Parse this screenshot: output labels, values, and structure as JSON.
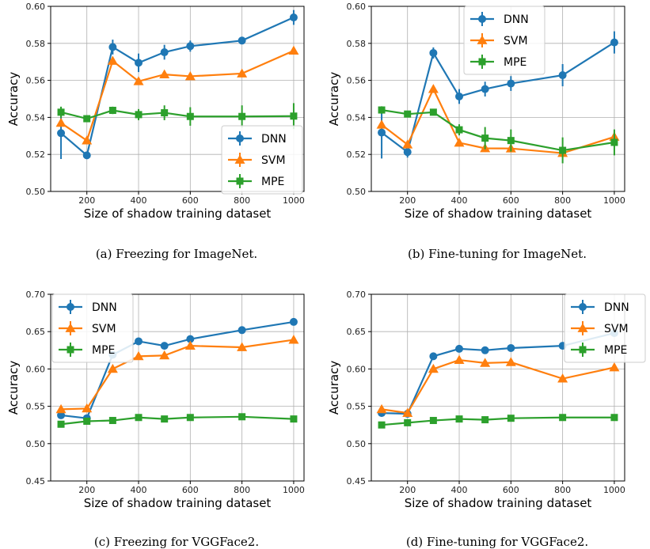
{
  "series_colors": {
    "DNN": "#1f77b4",
    "SVM": "#ff7f0e",
    "MPE": "#2ca02c"
  },
  "series_markers": {
    "DNN": "circle",
    "SVM": "triangle",
    "MPE": "square"
  },
  "chart_data": [
    {
      "type": "line",
      "caption": "(a) Freezing for ImageNet.",
      "xlabel": "Size of shadow training dataset",
      "ylabel": "Accuracy",
      "x": [
        100,
        200,
        300,
        400,
        500,
        600,
        800,
        1000
      ],
      "xticks": [
        200,
        400,
        600,
        800,
        1000
      ],
      "xlim": [
        60,
        1040
      ],
      "ylim": [
        0.5,
        0.6
      ],
      "yticks": [
        "0.50",
        "0.52",
        "0.54",
        "0.56",
        "0.58",
        "0.60"
      ],
      "grid": true,
      "legend_position": "lower-right",
      "series": [
        {
          "name": "DNN",
          "values": [
            0.5315,
            0.5195,
            0.578,
            0.5695,
            0.5752,
            0.5785,
            0.5815,
            0.594
          ],
          "err": [
            0.014,
            0.001,
            0.004,
            0.005,
            0.004,
            0.003,
            0.002,
            0.004
          ]
        },
        {
          "name": "SVM",
          "values": [
            0.537,
            0.5275,
            0.5705,
            0.5595,
            0.5632,
            0.5622,
            0.5637,
            0.576
          ],
          "err": [
            0.002,
            0.001,
            0.002,
            0.001,
            0.001,
            0.001,
            0.001,
            0.001
          ]
        },
        {
          "name": "MPE",
          "values": [
            0.5428,
            0.5393,
            0.5438,
            0.5415,
            0.5425,
            0.5405,
            0.5405,
            0.5407
          ],
          "err": [
            0.003,
            0.001,
            0.002,
            0.003,
            0.004,
            0.005,
            0.006,
            0.007
          ]
        }
      ]
    },
    {
      "type": "line",
      "caption": "(b) Fine-tuning for ImageNet.",
      "xlabel": "Size of shadow training dataset",
      "ylabel": "Accuracy",
      "x": [
        100,
        200,
        300,
        400,
        500,
        600,
        800,
        1000
      ],
      "xticks": [
        200,
        400,
        600,
        800,
        1000
      ],
      "xlim": [
        60,
        1040
      ],
      "ylim": [
        0.5,
        0.6
      ],
      "yticks": [
        "0.50",
        "0.52",
        "0.54",
        "0.56",
        "0.58",
        "0.60"
      ],
      "grid": true,
      "legend_position": "upper-center",
      "series": [
        {
          "name": "DNN",
          "values": [
            0.5318,
            0.5213,
            0.5748,
            0.5513,
            0.5553,
            0.5583,
            0.5628,
            0.5805
          ],
          "err": [
            0.014,
            0.003,
            0.003,
            0.004,
            0.004,
            0.004,
            0.006,
            0.006
          ]
        },
        {
          "name": "SVM",
          "values": [
            0.536,
            0.5253,
            0.5553,
            0.5263,
            0.5233,
            0.5232,
            0.5207,
            0.5295
          ],
          "err": [
            0.002,
            0.001,
            0.001,
            0.002,
            0.002,
            0.001,
            0.001,
            0.003
          ]
        },
        {
          "name": "MPE",
          "values": [
            0.544,
            0.5418,
            0.5428,
            0.5333,
            0.5288,
            0.5275,
            0.5222,
            0.5265
          ],
          "err": [
            0.002,
            0.001,
            0.001,
            0.003,
            0.006,
            0.006,
            0.007,
            0.007
          ]
        }
      ]
    },
    {
      "type": "line",
      "caption": "(c) Freezing for VGGFace2.",
      "xlabel": "Size of shadow training dataset",
      "ylabel": "Accuracy",
      "x": [
        100,
        200,
        300,
        400,
        500,
        600,
        800,
        1000
      ],
      "xticks": [
        200,
        400,
        600,
        800,
        1000
      ],
      "xlim": [
        60,
        1040
      ],
      "ylim": [
        0.45,
        0.7
      ],
      "yticks": [
        "0.45",
        "0.50",
        "0.55",
        "0.60",
        "0.65",
        "0.70"
      ],
      "grid": true,
      "legend_position": "upper-left",
      "series": [
        {
          "name": "DNN",
          "values": [
            0.538,
            0.534,
            0.619,
            0.637,
            0.631,
            0.64,
            0.652,
            0.663
          ],
          "err": [
            0.002,
            0.002,
            0.002,
            0.002,
            0.002,
            0.002,
            0.002,
            0.002
          ]
        },
        {
          "name": "SVM",
          "values": [
            0.546,
            0.547,
            0.6,
            0.617,
            0.618,
            0.631,
            0.629,
            0.639
          ],
          "err": [
            0.002,
            0.002,
            0.002,
            0.002,
            0.002,
            0.002,
            0.002,
            0.002
          ]
        },
        {
          "name": "MPE",
          "values": [
            0.526,
            0.53,
            0.531,
            0.535,
            0.533,
            0.535,
            0.536,
            0.533
          ],
          "err": [
            0.002,
            0.002,
            0.002,
            0.002,
            0.002,
            0.002,
            0.002,
            0.002
          ]
        }
      ]
    },
    {
      "type": "line",
      "caption": "(d) Fine-tuning for VGGFace2.",
      "xlabel": "Size of shadow training dataset",
      "ylabel": "Accuracy",
      "x": [
        100,
        200,
        300,
        400,
        500,
        600,
        800,
        1000
      ],
      "xticks": [
        200,
        400,
        600,
        800,
        1000
      ],
      "xlim": [
        60,
        1040
      ],
      "ylim": [
        0.45,
        0.7
      ],
      "yticks": [
        "0.45",
        "0.50",
        "0.55",
        "0.60",
        "0.65",
        "0.70"
      ],
      "grid": true,
      "legend_position": "upper-right",
      "series": [
        {
          "name": "DNN",
          "values": [
            0.541,
            0.54,
            0.617,
            0.627,
            0.625,
            0.628,
            0.631,
            0.648
          ],
          "err": [
            0.002,
            0.002,
            0.002,
            0.002,
            0.002,
            0.002,
            0.002,
            0.002
          ]
        },
        {
          "name": "SVM",
          "values": [
            0.546,
            0.541,
            0.6,
            0.612,
            0.608,
            0.609,
            0.587,
            0.602
          ],
          "err": [
            0.002,
            0.002,
            0.002,
            0.002,
            0.002,
            0.002,
            0.002,
            0.002
          ]
        },
        {
          "name": "MPE",
          "values": [
            0.525,
            0.528,
            0.531,
            0.533,
            0.532,
            0.534,
            0.535,
            0.535
          ],
          "err": [
            0.002,
            0.002,
            0.002,
            0.002,
            0.002,
            0.002,
            0.002,
            0.002
          ]
        }
      ]
    }
  ]
}
